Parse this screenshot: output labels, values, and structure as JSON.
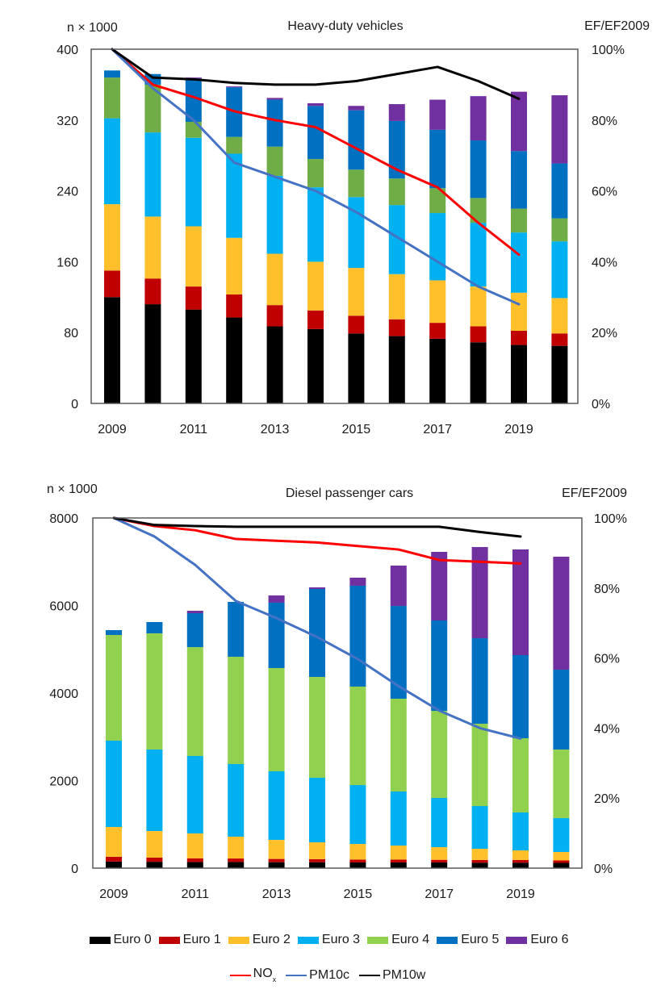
{
  "colors": {
    "euro0": "#000000",
    "euro1": "#C00000",
    "euro2": "#FFC02C",
    "euro3": "#00B0F0",
    "euro4_hdv": "#70AD47",
    "euro4_pc": "#92D050",
    "euro5": "#0070C0",
    "euro6": "#7030A0",
    "nox": "#FF0000",
    "pm10c": "#4472C4",
    "pm10w": "#000000"
  },
  "legend": {
    "bars": [
      {
        "key": "euro0",
        "label": "Euro 0"
      },
      {
        "key": "euro1",
        "label": "Euro 1"
      },
      {
        "key": "euro2",
        "label": "Euro 2"
      },
      {
        "key": "euro3",
        "label": "Euro 3"
      },
      {
        "key": "euro4_pc",
        "label": "Euro 4"
      },
      {
        "key": "euro5",
        "label": "Euro 5"
      },
      {
        "key": "euro6",
        "label": "Euro 6"
      }
    ],
    "lines": [
      {
        "key": "nox",
        "label": "NO",
        "subscript": "x"
      },
      {
        "key": "pm10c",
        "label": "PM10c",
        "subscript": ""
      },
      {
        "key": "pm10w",
        "label": "PM10w",
        "subscript": ""
      }
    ]
  },
  "chart_data": [
    {
      "type": "bar",
      "stacked": true,
      "title": "Heavy-duty vehicles",
      "ylabel": "n × 1000",
      "y2label": "EF/EF2009",
      "ylim": [
        0,
        400
      ],
      "yticks": [
        "0",
        "80",
        "160",
        "240",
        "320",
        "400"
      ],
      "yticks_values": [
        0,
        80,
        160,
        240,
        320,
        400
      ],
      "y2lim": [
        0,
        100
      ],
      "y2ticks": [
        "0%",
        "20%",
        "40%",
        "60%",
        "80%",
        "100%"
      ],
      "y2ticks_values": [
        0,
        20,
        40,
        60,
        80,
        100
      ],
      "categories": [
        "2009",
        "2010",
        "2011",
        "2012",
        "2013",
        "2014",
        "2015",
        "2016",
        "2017",
        "2018",
        "2019",
        "2020"
      ],
      "xtick_labels": [
        "2009",
        "",
        "2011",
        "",
        "2013",
        "",
        "2015",
        "",
        "2017",
        "",
        "2019",
        ""
      ],
      "euro4_color_key": "euro4_hdv",
      "series": [
        {
          "name": "Euro 0",
          "key": "euro0",
          "values": [
            120,
            112,
            106,
            97,
            87,
            84,
            79,
            76,
            73,
            69,
            66,
            65
          ]
        },
        {
          "name": "Euro 1",
          "key": "euro1",
          "values": [
            30,
            29,
            26,
            26,
            24,
            21,
            20,
            19,
            18,
            18,
            16,
            14
          ]
        },
        {
          "name": "Euro 2",
          "key": "euro2",
          "values": [
            75,
            70,
            68,
            64,
            58,
            55,
            54,
            51,
            48,
            45,
            43,
            40
          ]
        },
        {
          "name": "Euro 3",
          "key": "euro3",
          "values": [
            97,
            95,
            100,
            95,
            88,
            84,
            80,
            78,
            76,
            72,
            68,
            64
          ]
        },
        {
          "name": "Euro 4",
          "key": "euro4_hdv",
          "values": [
            46,
            54,
            18,
            19,
            33,
            32,
            31,
            30,
            28,
            28,
            27,
            26
          ]
        },
        {
          "name": "Euro 5",
          "key": "euro5",
          "values": [
            8,
            12,
            49,
            56,
            53,
            60,
            67,
            65,
            66,
            65,
            65,
            62
          ]
        },
        {
          "name": "Euro 6",
          "key": "euro6",
          "values": [
            0,
            0,
            1,
            1,
            2,
            3,
            5,
            19,
            34,
            50,
            67,
            77
          ]
        }
      ],
      "lines": [
        {
          "name": "NOx",
          "key": "nox",
          "axis": "right",
          "values": [
            100,
            90,
            86.5,
            82.5,
            80,
            78,
            72,
            66,
            61,
            51,
            42
          ]
        },
        {
          "name": "PM10c",
          "key": "pm10c",
          "axis": "right",
          "values": [
            100,
            89,
            80,
            68,
            64,
            60,
            54,
            47,
            40,
            33,
            28
          ]
        },
        {
          "name": "PM10w",
          "key": "pm10w",
          "axis": "right",
          "values": [
            100,
            92,
            91.5,
            90.5,
            90,
            90,
            91,
            93,
            95,
            91,
            86
          ]
        }
      ]
    },
    {
      "type": "bar",
      "stacked": true,
      "title": "Diesel passenger cars",
      "ylabel": "n × 1000",
      "y2label": "EF/EF2009",
      "ylim": [
        0,
        8000
      ],
      "yticks": [
        "0",
        "2000",
        "4000",
        "6000",
        "8000"
      ],
      "yticks_values": [
        0,
        2000,
        4000,
        6000,
        8000
      ],
      "y2lim": [
        0,
        100
      ],
      "y2ticks": [
        "0%",
        "20%",
        "40%",
        "60%",
        "80%",
        "100%"
      ],
      "y2ticks_values": [
        0,
        20,
        40,
        60,
        80,
        100
      ],
      "categories": [
        "2009",
        "2010",
        "2011",
        "2012",
        "2013",
        "2014",
        "2015",
        "2016",
        "2017",
        "2018",
        "2019",
        "2020"
      ],
      "xtick_labels": [
        "2009",
        "",
        "2011",
        "",
        "2013",
        "",
        "2015",
        "",
        "2017",
        "",
        "2019",
        ""
      ],
      "euro4_color_key": "euro4_pc",
      "series": [
        {
          "name": "Euro 0",
          "key": "euro0",
          "values": [
            150,
            145,
            140,
            140,
            135,
            135,
            130,
            130,
            130,
            125,
            125,
            120
          ]
        },
        {
          "name": "Euro 1",
          "key": "euro1",
          "values": [
            110,
            95,
            85,
            80,
            75,
            70,
            65,
            65,
            60,
            60,
            60,
            55
          ]
        },
        {
          "name": "Euro 2",
          "key": "euro2",
          "values": [
            680,
            608,
            568,
            499,
            435,
            385,
            358,
            321,
            289,
            257,
            221,
            194
          ]
        },
        {
          "name": "Euro 3",
          "key": "euro3",
          "values": [
            1972,
            1862,
            1769,
            1659,
            1567,
            1474,
            1345,
            1235,
            1125,
            977,
            866,
            774
          ]
        },
        {
          "name": "Euro 4",
          "key": "euro4_pc",
          "values": [
            2415,
            2654,
            2488,
            2452,
            2359,
            2305,
            2250,
            2120,
            1990,
            1881,
            1696,
            1567
          ]
        },
        {
          "name": "Euro 5",
          "key": "euro5",
          "values": [
            111,
            258,
            775,
            1253,
            1494,
            2009,
            2304,
            2119,
            2065,
            1953,
            1898,
            1825
          ]
        },
        {
          "name": "Euro 6",
          "key": "euro6",
          "values": [
            0,
            0,
            55,
            0,
            165,
            37,
            184,
            922,
            1567,
            2083,
            2415,
            2580
          ]
        }
      ],
      "lines": [
        {
          "name": "NOx",
          "key": "nox",
          "axis": "right",
          "values": [
            100,
            97.7,
            96.5,
            94,
            93.5,
            93,
            92,
            91,
            88,
            87.5,
            87
          ]
        },
        {
          "name": "PM10c",
          "key": "pm10c",
          "axis": "right",
          "values": [
            100,
            94.7,
            86.6,
            76.3,
            71.4,
            66,
            59.7,
            52,
            45,
            40,
            37
          ]
        },
        {
          "name": "PM10w",
          "key": "pm10w",
          "axis": "right",
          "values": [
            100,
            98,
            97.7,
            97.5,
            97.5,
            97.5,
            97.5,
            97.5,
            97.5,
            96,
            94.7
          ]
        }
      ]
    }
  ]
}
